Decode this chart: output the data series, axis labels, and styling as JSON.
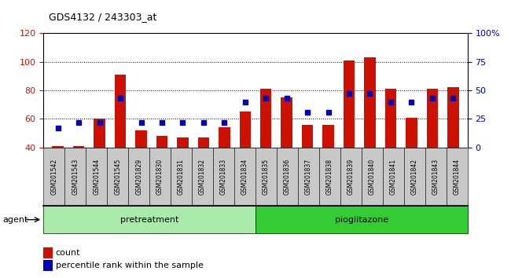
{
  "title": "GDS4132 / 243303_at",
  "samples": [
    "GSM201542",
    "GSM201543",
    "GSM201544",
    "GSM201545",
    "GSM201829",
    "GSM201830",
    "GSM201831",
    "GSM201832",
    "GSM201833",
    "GSM201834",
    "GSM201835",
    "GSM201836",
    "GSM201837",
    "GSM201838",
    "GSM201839",
    "GSM201840",
    "GSM201841",
    "GSM201842",
    "GSM201843",
    "GSM201844"
  ],
  "count_values": [
    41,
    41,
    60,
    91,
    52,
    48,
    47,
    47,
    54,
    65,
    81,
    75,
    56,
    56,
    101,
    103,
    81,
    61,
    81,
    82
  ],
  "percentile_values": [
    17,
    22,
    22,
    43,
    22,
    22,
    22,
    22,
    22,
    40,
    43,
    43,
    31,
    31,
    47,
    47,
    40,
    40,
    43,
    43
  ],
  "pretreatment_label": "pretreatment",
  "pioglitazone_label": "pioglitazone",
  "pretreatment_count": 10,
  "pioglitazone_count": 10,
  "ylim_left": [
    40,
    120
  ],
  "ylim_right": [
    0,
    100
  ],
  "yticks_left": [
    40,
    60,
    80,
    100,
    120
  ],
  "yticks_right": [
    0,
    25,
    50,
    75,
    100
  ],
  "yticklabels_right": [
    "0",
    "25",
    "50",
    "75",
    "100%"
  ],
  "bar_color": "#cc1100",
  "marker_color": "#0000bb",
  "left_axis_color": "#cc1100",
  "right_axis_color": "#0000bb",
  "pretreatment_bg": "#aaeaaa",
  "pioglitazone_bg": "#33cc33",
  "tick_bg": "#c8c8c8",
  "agent_label": "agent",
  "legend_count": "count",
  "legend_percentile": "percentile rank within the sample",
  "bar_width": 0.55
}
